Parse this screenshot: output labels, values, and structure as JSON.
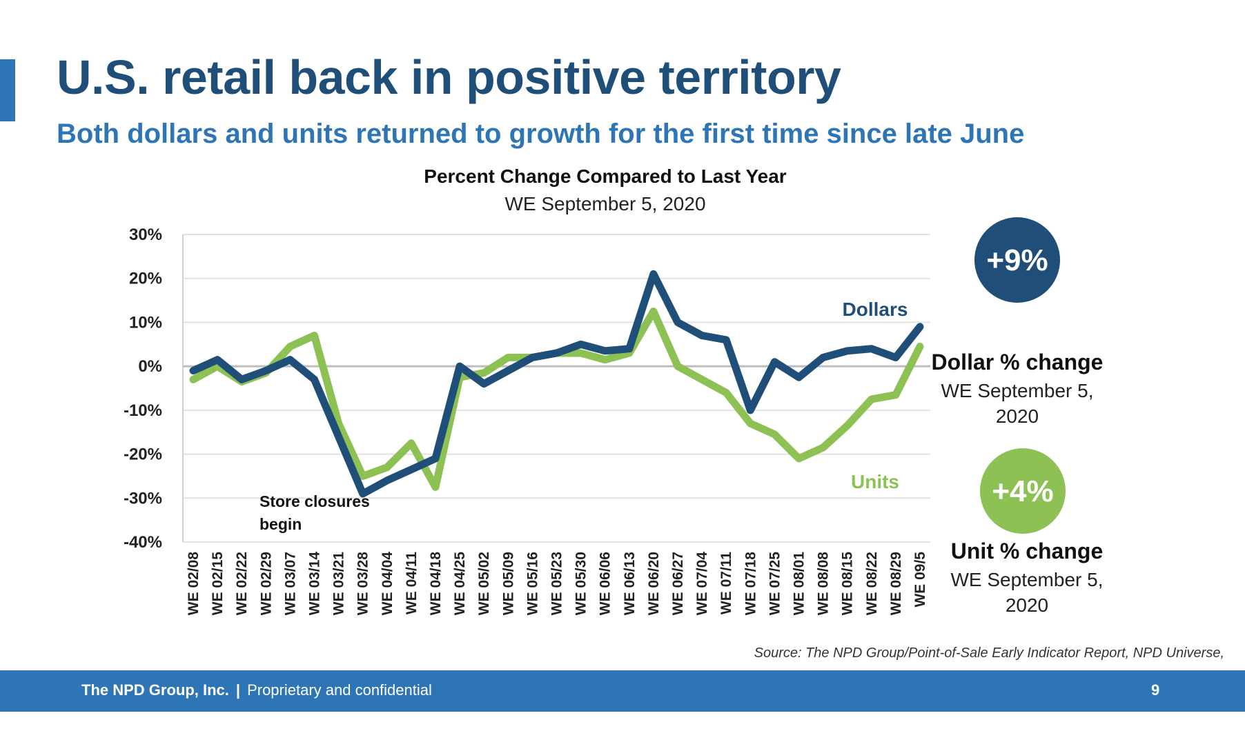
{
  "slide": {
    "title": "U.S. retail back in positive territory",
    "subtitle": "Both dollars and units returned to growth for the first time since late June",
    "source": "Source: The NPD Group/Point-of-Sale Early Indicator Report, NPD Universe,"
  },
  "footer": {
    "company": "The NPD Group, Inc.",
    "separator": "|",
    "text": "Proprietary and confidential",
    "page_number": "9"
  },
  "stats": {
    "dollars": {
      "badge": "+9%",
      "caption": "Dollar % change",
      "date_line1": "WE September 5,",
      "date_line2": "2020",
      "color": "#1f4e79"
    },
    "units": {
      "badge": "+4%",
      "caption": "Unit % change",
      "date_line1": "WE September 5,",
      "date_line2": "2020",
      "color": "#8dc154"
    }
  },
  "chart_data": {
    "type": "line",
    "title": "Percent Change Compared to Last Year",
    "subtitle": "WE September 5, 2020",
    "x": [
      "WE 02/08",
      "WE 02/15",
      "WE 02/22",
      "WE 02/29",
      "WE 03/07",
      "WE 03/14",
      "WE 03/21",
      "WE 03/28",
      "WE 04/04",
      "WE 04/11",
      "WE 04/18",
      "WE 04/25",
      "WE 05/02",
      "WE 05/09",
      "WE 05/16",
      "WE 05/23",
      "WE 05/30",
      "WE 06/06",
      "WE 06/13",
      "WE 06/20",
      "WE 06/27",
      "WE 07/04",
      "WE 07/11",
      "WE 07/18",
      "WE 07/25",
      "WE 08/01",
      "WE 08/08",
      "WE 08/15",
      "WE 08/22",
      "WE 08/29",
      "WE 09/5"
    ],
    "yticks": [
      "30%",
      "20%",
      "10%",
      "0%",
      "-10%",
      "-20%",
      "-30%",
      "-40%"
    ],
    "ylim": [
      -40,
      30
    ],
    "grid": true,
    "series": [
      {
        "name": "Dollars",
        "color": "#1f4e79",
        "values": [
          -1,
          1.5,
          -3,
          -1,
          1.5,
          -3,
          -16,
          -29,
          -26,
          -23.5,
          -21,
          0,
          -4,
          -1,
          2,
          3,
          5,
          3.5,
          4,
          21,
          10,
          7,
          6,
          -10,
          1,
          -2.5,
          2,
          3.5,
          4,
          2,
          9
        ]
      },
      {
        "name": "Units",
        "color": "#8dc154",
        "values": [
          -3,
          0,
          -3.5,
          -1.5,
          4.5,
          7,
          -13,
          -25,
          -23,
          -17.5,
          -27.5,
          -2.5,
          -1.5,
          2,
          2,
          3,
          3,
          1.5,
          3,
          12.5,
          0,
          -3,
          -6,
          -13,
          -15.5,
          -21,
          -18.5,
          -13.5,
          -7.5,
          -6.5,
          4.5
        ]
      }
    ],
    "annotations": [
      {
        "text_line1": "Store closures",
        "text_line2": "begin",
        "x": "WE 03/28",
        "y": -29
      }
    ]
  }
}
